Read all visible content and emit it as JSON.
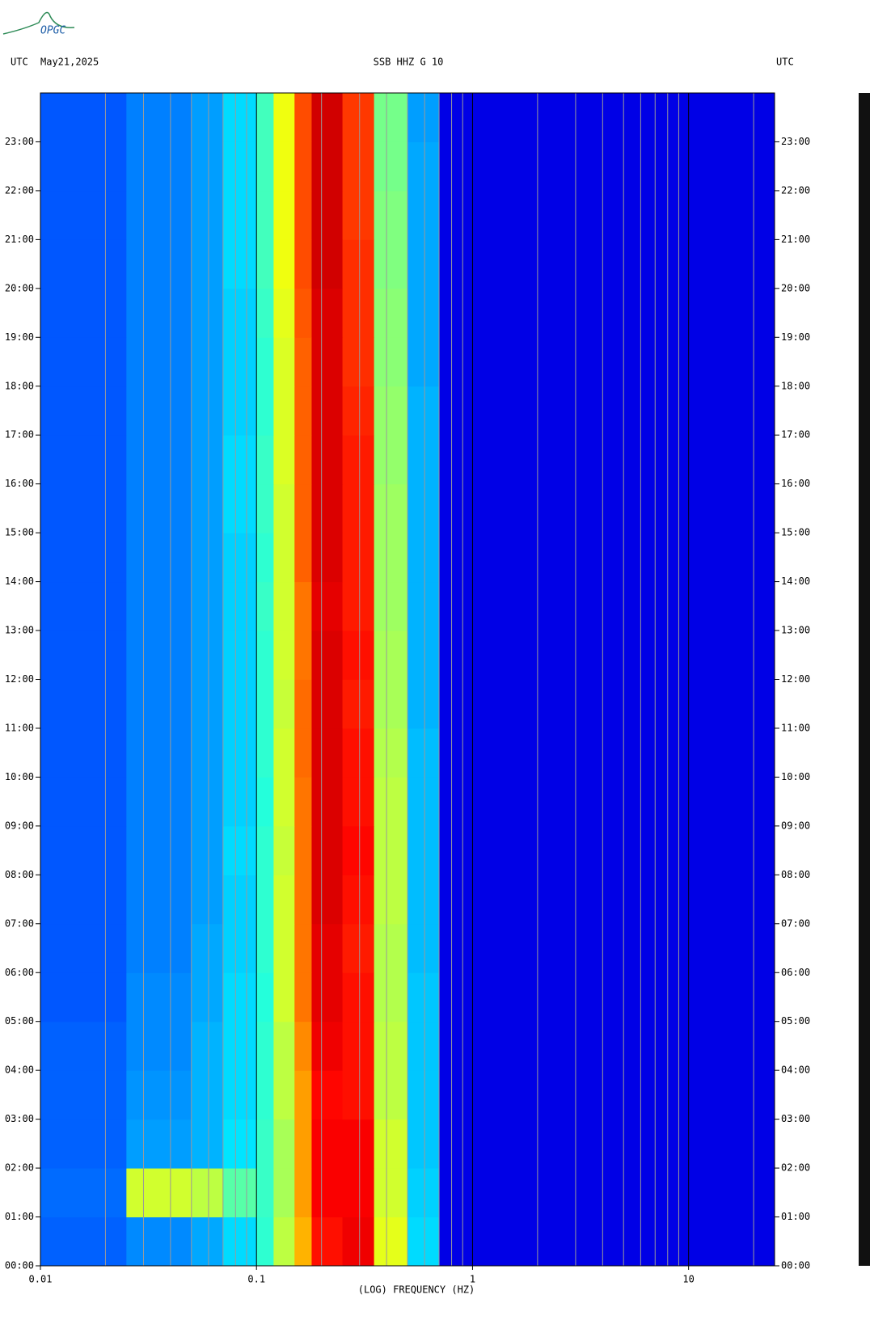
{
  "chart_data": {
    "type": "spectrogram",
    "logo": "OPGC",
    "left_label": "UTC",
    "date": "May21,2025",
    "title": "SSB HHZ G 10",
    "right_label": "UTC",
    "xlabel": "(LOG) FREQUENCY (HZ)",
    "xscale": "log",
    "xlim": [
      0.01,
      25
    ],
    "xticks": [
      0.01,
      0.1,
      1,
      10
    ],
    "minor_xticks": [
      0.02,
      0.03,
      0.04,
      0.05,
      0.06,
      0.07,
      0.08,
      0.09,
      0.2,
      0.3,
      0.4,
      0.5,
      0.6,
      0.7,
      0.8,
      0.9,
      2,
      3,
      4,
      5,
      6,
      7,
      8,
      9,
      20
    ],
    "ylim": [
      0,
      24
    ],
    "yticks": [
      {
        "value": 0,
        "label": "00:00"
      },
      {
        "value": 1,
        "label": "01:00"
      },
      {
        "value": 2,
        "label": "02:00"
      },
      {
        "value": 3,
        "label": "03:00"
      },
      {
        "value": 4,
        "label": "04:00"
      },
      {
        "value": 5,
        "label": "05:00"
      },
      {
        "value": 6,
        "label": "06:00"
      },
      {
        "value": 7,
        "label": "07:00"
      },
      {
        "value": 8,
        "label": "08:00"
      },
      {
        "value": 9,
        "label": "09:00"
      },
      {
        "value": 10,
        "label": "10:00"
      },
      {
        "value": 11,
        "label": "11:00"
      },
      {
        "value": 12,
        "label": "12:00"
      },
      {
        "value": 13,
        "label": "13:00"
      },
      {
        "value": 14,
        "label": "14:00"
      },
      {
        "value": 15,
        "label": "15:00"
      },
      {
        "value": 16,
        "label": "16:00"
      },
      {
        "value": 17,
        "label": "17:00"
      },
      {
        "value": 18,
        "label": "18:00"
      },
      {
        "value": 19,
        "label": "19:00"
      },
      {
        "value": 20,
        "label": "20:00"
      },
      {
        "value": 21,
        "label": "21:00"
      },
      {
        "value": 22,
        "label": "22:00"
      },
      {
        "value": 23,
        "label": "23:00"
      }
    ],
    "freq_bins": [
      0.01,
      0.025,
      0.05,
      0.07,
      0.1,
      0.12,
      0.15,
      0.18,
      0.25,
      0.35,
      0.5,
      0.7,
      25
    ],
    "y_bins": [
      0,
      1,
      2,
      3,
      4,
      5,
      6,
      7,
      8,
      9,
      10,
      11,
      12,
      13,
      14,
      15,
      16,
      17,
      18,
      19,
      20,
      21,
      22,
      23,
      24
    ],
    "z": [
      [
        2.2,
        2.6,
        2.9,
        3.4,
        4.2,
        5.6,
        7.0,
        8.6,
        8.9,
        6.0,
        3.4,
        1.0
      ],
      [
        2.3,
        5.8,
        5.6,
        4.6,
        4.3,
        5.4,
        7.2,
        8.8,
        8.8,
        5.8,
        3.3,
        1.0
      ],
      [
        2.2,
        2.8,
        3.0,
        3.5,
        4.3,
        5.4,
        7.2,
        8.8,
        8.8,
        5.8,
        3.2,
        1.0
      ],
      [
        2.2,
        2.7,
        3.0,
        3.4,
        4.2,
        5.6,
        7.2,
        8.7,
        8.6,
        5.6,
        3.2,
        1.0
      ],
      [
        2.2,
        2.6,
        3.0,
        3.4,
        4.2,
        5.6,
        7.4,
        8.9,
        8.6,
        5.6,
        3.2,
        1.0
      ],
      [
        2.1,
        2.6,
        2.9,
        3.4,
        4.1,
        5.8,
        7.6,
        9.0,
        8.6,
        5.5,
        3.2,
        1.0
      ],
      [
        2.1,
        2.5,
        2.9,
        3.3,
        4.2,
        5.8,
        7.6,
        9.0,
        8.5,
        5.5,
        3.1,
        1.0
      ],
      [
        2.1,
        2.5,
        2.8,
        3.3,
        4.2,
        5.8,
        7.6,
        9.1,
        8.6,
        5.6,
        3.1,
        1.0
      ],
      [
        2.1,
        2.5,
        2.8,
        3.4,
        4.2,
        5.7,
        7.6,
        9.1,
        8.7,
        5.6,
        3.1,
        1.0
      ],
      [
        2.1,
        2.5,
        2.8,
        3.3,
        4.1,
        5.8,
        7.6,
        9.1,
        8.6,
        5.6,
        3.1,
        1.0
      ],
      [
        2.1,
        2.5,
        2.8,
        3.3,
        4.2,
        5.8,
        7.7,
        9.1,
        8.6,
        5.5,
        3.1,
        1.0
      ],
      [
        2.1,
        2.5,
        2.8,
        3.3,
        4.2,
        5.7,
        7.7,
        9.1,
        8.5,
        5.4,
        3.0,
        1.0
      ],
      [
        2.1,
        2.5,
        2.8,
        3.3,
        4.2,
        5.8,
        7.6,
        9.1,
        8.6,
        5.4,
        3.0,
        1.0
      ],
      [
        2.1,
        2.5,
        2.8,
        3.3,
        4.3,
        5.8,
        7.6,
        9.0,
        8.5,
        5.3,
        3.0,
        1.0
      ],
      [
        2.1,
        2.5,
        2.8,
        3.3,
        4.2,
        5.8,
        7.8,
        9.1,
        8.5,
        5.3,
        3.0,
        1.0
      ],
      [
        2.1,
        2.5,
        2.8,
        3.4,
        4.3,
        5.8,
        7.8,
        9.1,
        8.5,
        5.3,
        3.0,
        1.0
      ],
      [
        2.1,
        2.5,
        2.8,
        3.4,
        4.3,
        5.9,
        7.8,
        9.1,
        8.5,
        5.2,
        3.0,
        1.0
      ],
      [
        2.1,
        2.5,
        2.8,
        3.3,
        4.2,
        5.9,
        7.8,
        9.1,
        8.4,
        5.2,
        3.0,
        1.0
      ],
      [
        2.1,
        2.5,
        2.8,
        3.3,
        4.2,
        5.9,
        7.8,
        9.1,
        8.3,
        5.1,
        2.9,
        1.0
      ],
      [
        2.1,
        2.5,
        2.8,
        3.3,
        4.3,
        6.0,
        7.9,
        9.1,
        8.3,
        5.1,
        2.9,
        1.0
      ],
      [
        2.1,
        2.5,
        2.8,
        3.4,
        4.4,
        6.1,
        8.0,
        9.2,
        8.3,
        5.0,
        2.9,
        1.0
      ],
      [
        2.1,
        2.5,
        2.8,
        3.4,
        4.4,
        6.1,
        8.0,
        9.2,
        8.2,
        5.0,
        2.9,
        1.0
      ],
      [
        2.1,
        2.5,
        2.8,
        3.4,
        4.4,
        6.1,
        8.0,
        9.2,
        8.2,
        4.9,
        2.9,
        1.0
      ],
      [
        2.1,
        2.5,
        2.8,
        3.4,
        4.4,
        6.1,
        8.0,
        9.2,
        8.2,
        4.9,
        2.8,
        1.0
      ]
    ],
    "zlim": [
      0,
      10
    ]
  }
}
